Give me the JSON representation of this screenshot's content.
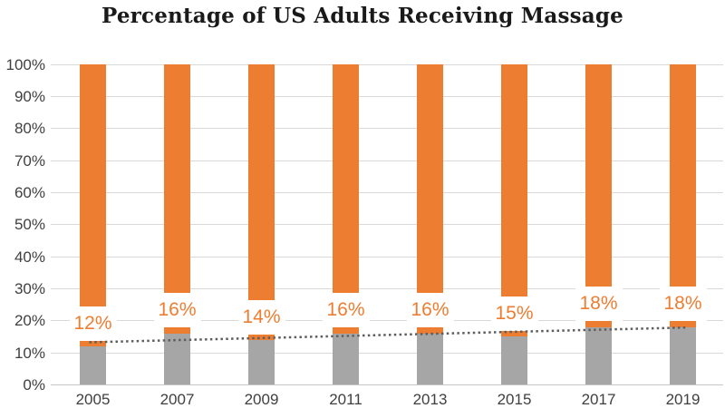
{
  "chart_data": {
    "type": "bar",
    "stacked": true,
    "title": "Percentage of US Adults Receiving Massage",
    "categories": [
      "2005",
      "2007",
      "2009",
      "2011",
      "2013",
      "2015",
      "2017",
      "2019"
    ],
    "series": [
      {
        "name": "gray-bottom-segment",
        "color": "#A6A6A6",
        "values": [
          12,
          16,
          14,
          16,
          16,
          15,
          18,
          18
        ]
      },
      {
        "name": "orange-top-segment",
        "color": "#ED7D31",
        "values": [
          88,
          84,
          86,
          84,
          84,
          85,
          82,
          82
        ]
      }
    ],
    "data_labels": [
      "12%",
      "16%",
      "14%",
      "16%",
      "16%",
      "15%",
      "18%",
      "18%"
    ],
    "xlabel": "",
    "ylabel": "",
    "ylim": [
      0,
      100
    ],
    "y_ticks": [
      "0%",
      "10%",
      "20%",
      "30%",
      "40%",
      "50%",
      "60%",
      "70%",
      "80%",
      "90%",
      "100%"
    ],
    "grid": true,
    "legend": "none",
    "trendline": {
      "type": "linear",
      "style": "dotted",
      "color": "#5E5E5E",
      "start_value_pct": 13.3,
      "end_value_pct": 17.9
    }
  },
  "colors": {
    "bar_orange": "#ED7D31",
    "bar_gray": "#A6A6A6",
    "data_label_text": "#ED7D31",
    "data_label_bg": "#FFFFFF",
    "gridline": "#D9D9D9",
    "axis_line": "#C6C6C6",
    "axis_text": "#404040",
    "title_text": "#1A1A1A",
    "trendline": "#5E5E5E"
  }
}
